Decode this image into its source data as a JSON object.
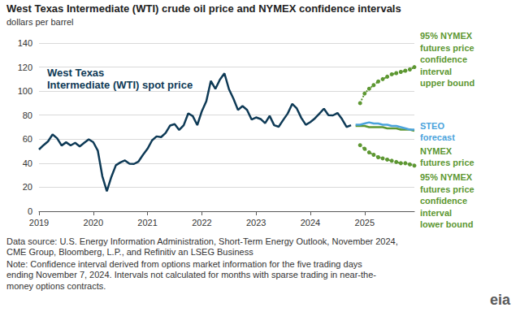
{
  "chart_data": {
    "type": "line",
    "title": "West Texas Intermediate (WTI) crude oil price and NYMEX confidence intervals",
    "subtitle": "dollars per barrel",
    "source": "Data source: U.S. Energy Information Administration, Short-Term Energy Outlook, November 2024,\nCME Group, Bloomberg, L.P., and Refinitiv an LSEG Business",
    "note": "Note: Confidence interval derived from options market information for the five trading days\nending November 7, 2024. Intervals not calculated for months with sparse trading in near-the-\nmoney options contracts.",
    "logo": "eia",
    "categories": [
      "2019",
      null,
      null,
      null,
      null,
      null,
      null,
      null,
      null,
      null,
      null,
      null,
      "2020",
      null,
      null,
      null,
      null,
      null,
      null,
      null,
      null,
      null,
      null,
      null,
      "2021",
      null,
      null,
      null,
      null,
      null,
      null,
      null,
      null,
      null,
      null,
      null,
      "2022",
      null,
      null,
      null,
      null,
      null,
      null,
      null,
      null,
      null,
      null,
      null,
      "2023",
      null,
      null,
      null,
      null,
      null,
      null,
      null,
      null,
      null,
      null,
      null,
      "2024",
      null,
      null,
      null,
      null,
      null,
      null,
      null,
      null,
      null,
      null,
      null,
      "2025",
      null,
      null,
      null,
      null,
      null,
      null,
      null,
      null,
      null,
      null,
      null
    ],
    "ylim": [
      0,
      140
    ],
    "yticks": [
      0,
      20,
      40,
      60,
      80,
      100,
      120,
      140
    ],
    "grid": true,
    "series": [
      {
        "name": "West Texas\nIntermediate (WTI) spot price",
        "color": "#0e3a56",
        "marker": "none",
        "line_style": "solid",
        "values": [
          51.4,
          55.0,
          58.2,
          63.9,
          60.8,
          54.7,
          57.4,
          54.8,
          57.0,
          54.0,
          57.0,
          59.9,
          57.5,
          50.5,
          29.2,
          16.6,
          28.6,
          38.3,
          40.7,
          42.3,
          39.6,
          39.4,
          41.4,
          47.0,
          52.0,
          59.0,
          62.3,
          61.7,
          65.2,
          71.4,
          72.5,
          67.7,
          71.6,
          81.5,
          79.2,
          71.7,
          83.2,
          91.6,
          108.5,
          101.8,
          109.6,
          114.8,
          101.6,
          93.7,
          84.3,
          87.6,
          84.4,
          76.4,
          78.1,
          76.8,
          73.3,
          79.4,
          71.6,
          70.3,
          76.0,
          81.4,
          89.4,
          85.6,
          77.7,
          71.9,
          74.2,
          77.3,
          81.3,
          85.4,
          80.0,
          79.8,
          81.8,
          76.7,
          70.2,
          71.6,
          null,
          null,
          null,
          null,
          null,
          null,
          null,
          null,
          null,
          null,
          null,
          null,
          null,
          null
        ]
      },
      {
        "name": "NYMEX\nfutures price",
        "color": "#5d9732",
        "marker": "none",
        "line_style": "solid",
        "values": [
          null,
          null,
          null,
          null,
          null,
          null,
          null,
          null,
          null,
          null,
          null,
          null,
          null,
          null,
          null,
          null,
          null,
          null,
          null,
          null,
          null,
          null,
          null,
          null,
          null,
          null,
          null,
          null,
          null,
          null,
          null,
          null,
          null,
          null,
          null,
          null,
          null,
          null,
          null,
          null,
          null,
          null,
          null,
          null,
          null,
          null,
          null,
          null,
          null,
          null,
          null,
          null,
          null,
          null,
          null,
          null,
          null,
          null,
          null,
          null,
          null,
          null,
          null,
          null,
          null,
          null,
          null,
          null,
          null,
          null,
          71,
          71,
          71,
          70,
          70,
          70,
          70,
          69,
          69,
          69,
          68,
          68,
          68,
          67
        ]
      },
      {
        "name": "STEO\nforecast",
        "color": "#4ba3dc",
        "marker": "none",
        "line_style": "solid",
        "values": [
          null,
          null,
          null,
          null,
          null,
          null,
          null,
          null,
          null,
          null,
          null,
          null,
          null,
          null,
          null,
          null,
          null,
          null,
          null,
          null,
          null,
          null,
          null,
          null,
          null,
          null,
          null,
          null,
          null,
          null,
          null,
          null,
          null,
          null,
          null,
          null,
          null,
          null,
          null,
          null,
          null,
          null,
          null,
          null,
          null,
          null,
          null,
          null,
          null,
          null,
          null,
          null,
          null,
          null,
          null,
          null,
          null,
          null,
          null,
          null,
          null,
          null,
          null,
          null,
          null,
          null,
          null,
          null,
          null,
          null,
          72,
          72,
          73,
          74,
          73,
          73,
          72,
          72,
          71,
          71,
          70,
          69,
          68,
          68
        ]
      },
      {
        "name": "95% NYMEX\nfutures price\nconfidence\ninterval\nupper bound",
        "color": "#5d9732",
        "marker": "circle",
        "line_style": "dotted",
        "values": [
          null,
          null,
          null,
          null,
          null,
          null,
          null,
          null,
          null,
          null,
          null,
          null,
          null,
          null,
          null,
          null,
          null,
          null,
          null,
          null,
          null,
          null,
          null,
          null,
          null,
          null,
          null,
          null,
          null,
          null,
          null,
          null,
          null,
          null,
          null,
          null,
          null,
          null,
          null,
          null,
          null,
          null,
          null,
          null,
          null,
          null,
          null,
          null,
          null,
          null,
          null,
          null,
          null,
          null,
          null,
          null,
          null,
          null,
          null,
          null,
          null,
          null,
          null,
          null,
          null,
          null,
          null,
          null,
          null,
          null,
          null,
          90,
          98,
          102,
          105,
          108,
          110,
          112,
          114,
          115,
          116,
          117,
          118,
          120
        ]
      },
      {
        "name": "95% NYMEX\nfutures price\nconfidence\ninterval\nlower bound",
        "color": "#5d9732",
        "marker": "circle",
        "line_style": "dotted",
        "values": [
          null,
          null,
          null,
          null,
          null,
          null,
          null,
          null,
          null,
          null,
          null,
          null,
          null,
          null,
          null,
          null,
          null,
          null,
          null,
          null,
          null,
          null,
          null,
          null,
          null,
          null,
          null,
          null,
          null,
          null,
          null,
          null,
          null,
          null,
          null,
          null,
          null,
          null,
          null,
          null,
          null,
          null,
          null,
          null,
          null,
          null,
          null,
          null,
          null,
          null,
          null,
          null,
          null,
          null,
          null,
          null,
          null,
          null,
          null,
          null,
          null,
          null,
          null,
          null,
          null,
          null,
          null,
          null,
          null,
          null,
          null,
          55,
          52,
          49,
          47,
          45,
          44,
          43,
          42,
          41,
          40,
          40,
          39,
          38
        ]
      }
    ]
  }
}
